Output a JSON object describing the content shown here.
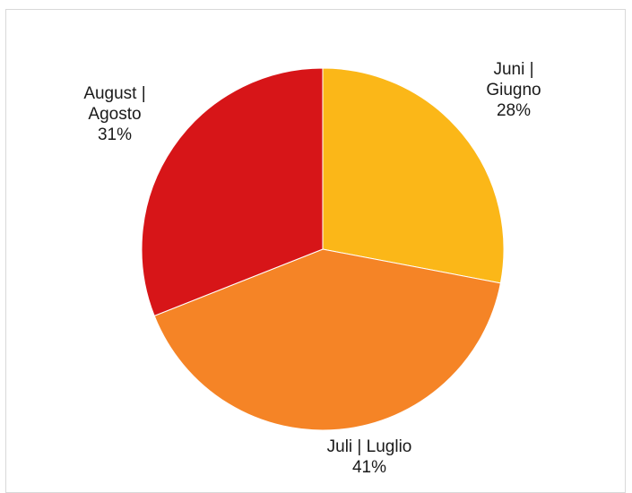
{
  "chart_data": {
    "type": "pie",
    "title": "",
    "categories": [
      "Juni | Giugno",
      "Juli | Luglio",
      "August | Agosto"
    ],
    "values": [
      28,
      41,
      31
    ],
    "value_labels": [
      "28%",
      "41%",
      "31%"
    ],
    "colors": [
      "#FBB718",
      "#F58426",
      "#D71518"
    ],
    "start_angle_deg": 0,
    "direction": "clockwise",
    "legend": "none",
    "slice_labels": [
      {
        "lines": [
          "Juni |",
          "Giugno"
        ],
        "percent": "28%"
      },
      {
        "lines": [
          "Juli | Luglio"
        ],
        "percent": "41%"
      },
      {
        "lines": [
          "August |",
          "Agosto"
        ],
        "percent": "31%"
      }
    ]
  }
}
